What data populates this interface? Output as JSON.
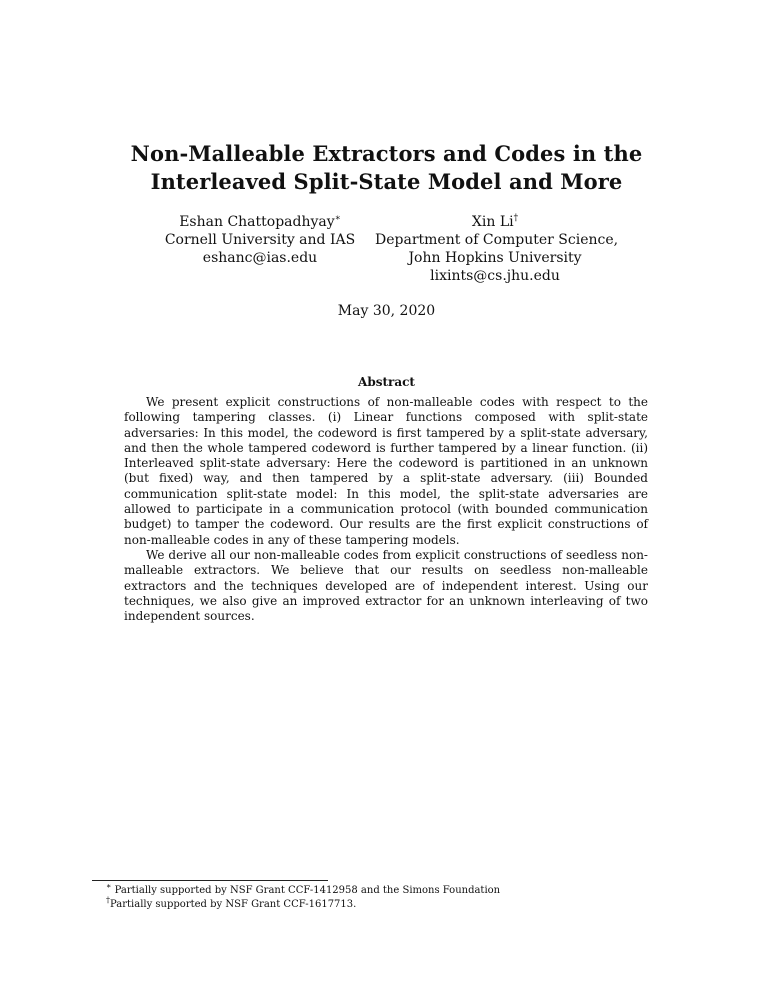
{
  "paper": {
    "title_line1": "Non-Malleable Extractors and Codes in the",
    "title_line2": "Interleaved Split-State Model and More",
    "authors": [
      {
        "name": "Eshan Chattopadhyay",
        "mark": "∗",
        "affiliation_lines": [
          "Cornell University and IAS"
        ],
        "email": "eshanc@ias.edu"
      },
      {
        "name": "Xin Li",
        "mark": "†",
        "affiliation_lines": [
          "Department of Computer Science,",
          "John Hopkins University"
        ],
        "email": "lixints@cs.jhu.edu"
      }
    ],
    "date": "May 30, 2020",
    "abstract_heading": "Abstract",
    "abstract_paragraphs": [
      "We present explicit constructions of non-malleable codes with respect to the following tampering classes. (i) Linear functions composed with split-state adversaries: In this model, the codeword is first tampered by a split-state adversary, and then the whole tampered codeword is further tampered by a linear function. (ii) Interleaved split-state adversary: Here the codeword is partitioned in an unknown (but fixed) way, and then tampered by a split-state adversary. (iii) Bounded communication split-state model: In this model, the split-state adversaries are allowed to participate in a communication protocol (with bounded communication budget) to tamper the codeword. Our results are the first explicit constructions of non-malleable codes in any of these tampering models.",
      "We derive all our non-malleable codes from explicit constructions of seedless non-malleable extractors. We believe that our results on seedless non-malleable extractors and the techniques developed are of independent interest. Using our techniques, we also give an improved extractor for an unknown interleaving of two independent sources."
    ],
    "footnotes": [
      {
        "mark": "∗",
        "text": " Partially supported by NSF Grant CCF-1412958 and the Simons Foundation"
      },
      {
        "mark": "†",
        "text": "Partially supported by NSF Grant CCF-1617713."
      }
    ]
  }
}
